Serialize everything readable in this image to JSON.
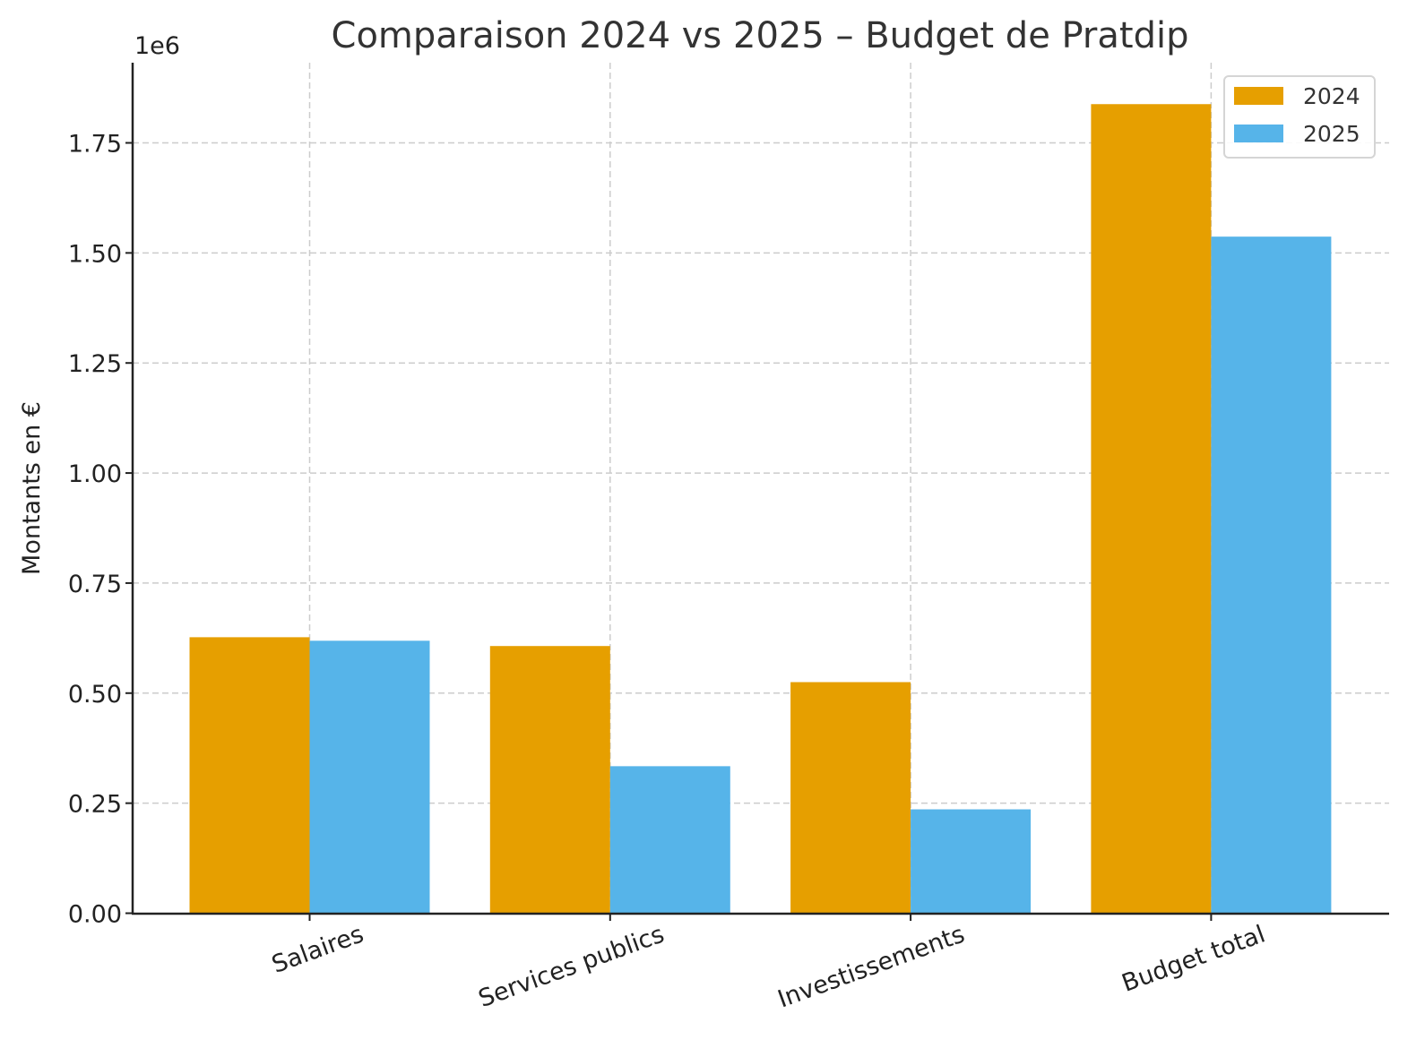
{
  "chart_data": {
    "type": "bar",
    "title": "Comparaison 2024 vs 2025 – Budget de Pratdip",
    "xlabel": "",
    "ylabel": "Montants en €",
    "y_offset_label": "1e6",
    "ylim": [
      0,
      1935000
    ],
    "yticks": [
      0,
      250000,
      500000,
      750000,
      1000000,
      1250000,
      1500000,
      1750000
    ],
    "ytick_labels": [
      "0.00",
      "0.25",
      "0.50",
      "0.75",
      "1.00",
      "1.25",
      "1.50",
      "1.75"
    ],
    "categories": [
      "Salaires",
      "Services publics",
      "Investissements",
      "Budget total"
    ],
    "xtick_rotation_deg": 20,
    "grid": true,
    "legend_position": "top-right",
    "series": [
      {
        "name": "2024",
        "color": "#E69F00",
        "values": [
          627000,
          607000,
          525000,
          1838000
        ]
      },
      {
        "name": "2025",
        "color": "#56B4E9",
        "values": [
          619000,
          334000,
          236000,
          1537000
        ]
      }
    ]
  }
}
